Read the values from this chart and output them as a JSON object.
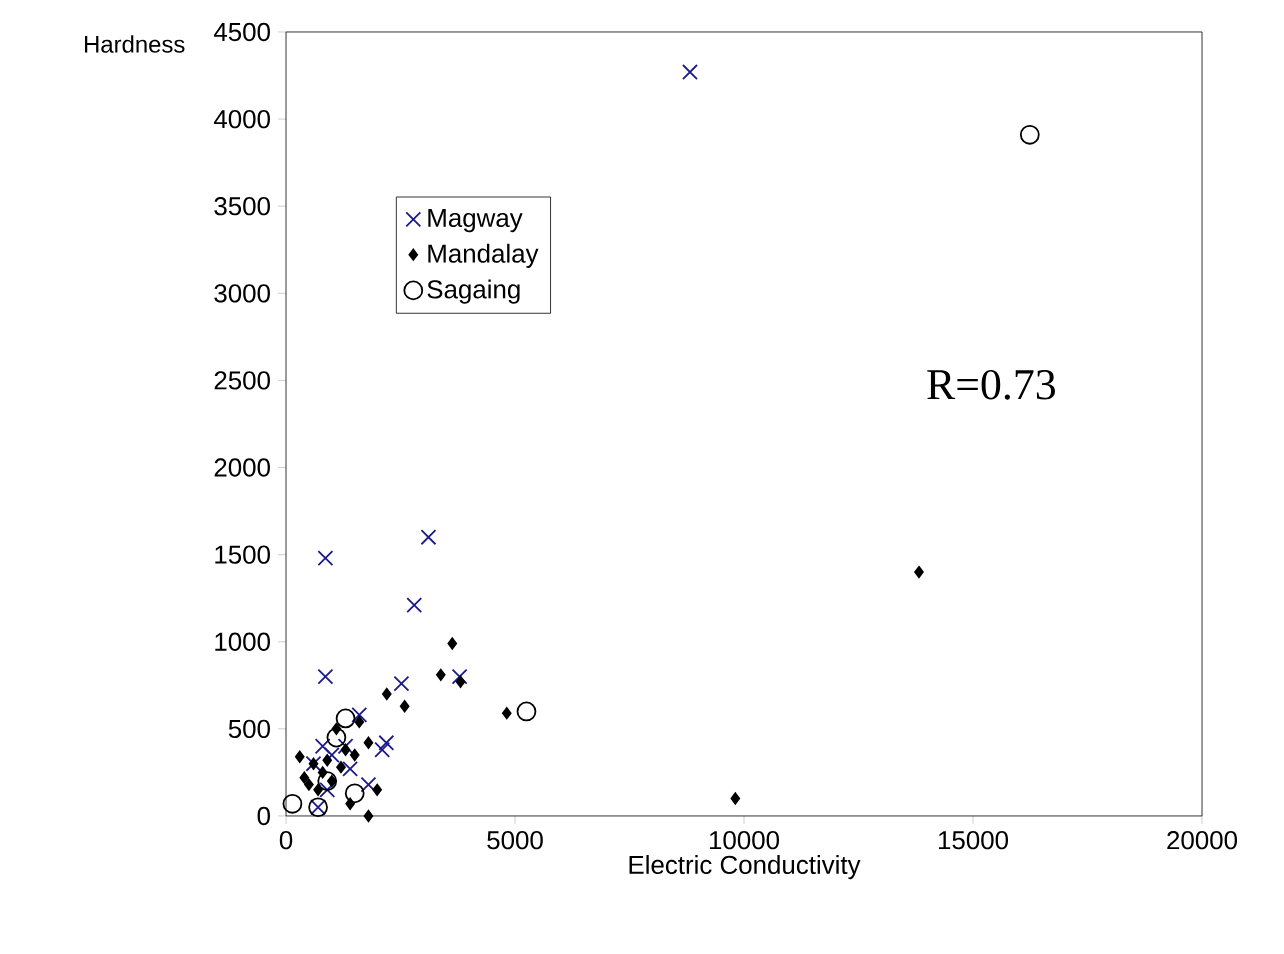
{
  "chart_data": {
    "type": "scatter",
    "xlabel": "Electric Conductivity",
    "ylabel": "Hardness",
    "xlim": [
      0,
      20000
    ],
    "ylim": [
      0,
      4500
    ],
    "xticks": [
      0,
      5000,
      10000,
      15000,
      20000
    ],
    "yticks": [
      0,
      500,
      1000,
      1500,
      2000,
      2500,
      3000,
      3500,
      4000,
      4500
    ],
    "legend": "top left",
    "grid": false,
    "annotations": [
      "R=0.73"
    ],
    "series": [
      {
        "name": "Magway",
        "color": "#1a1a8c",
        "marker": "cross",
        "x": [
          8820,
          860,
          3110,
          2800,
          860,
          2520,
          3790,
          2190,
          2100,
          1600,
          1800,
          700,
          800,
          1300,
          1000,
          1400,
          600,
          900
        ],
        "values": [
          4270,
          1480,
          1600,
          1210,
          800,
          760,
          800,
          420,
          380,
          580,
          180,
          50,
          400,
          400,
          350,
          270,
          300,
          150
        ]
      },
      {
        "name": "Mandalay",
        "color": "#000000",
        "marker": "diamond",
        "x": [
          13820,
          9810,
          4820,
          3630,
          3380,
          3810,
          2200,
          2590,
          1800,
          1990,
          1800,
          1600,
          1500,
          1400,
          300,
          600,
          800,
          1000,
          1200,
          500,
          700,
          900,
          1100,
          400,
          1300
        ],
        "values": [
          1400,
          100,
          590,
          990,
          810,
          770,
          700,
          630,
          0,
          150,
          420,
          540,
          350,
          70,
          340,
          300,
          250,
          200,
          280,
          180,
          150,
          320,
          500,
          220,
          380
        ]
      },
      {
        "name": "Sagaing",
        "color": "#000000",
        "marker": "circle",
        "x": [
          16240,
          5250,
          140,
          700,
          1500,
          1300,
          1100,
          900
        ],
        "values": [
          3910,
          600,
          70,
          50,
          130,
          560,
          450,
          200
        ]
      }
    ]
  }
}
